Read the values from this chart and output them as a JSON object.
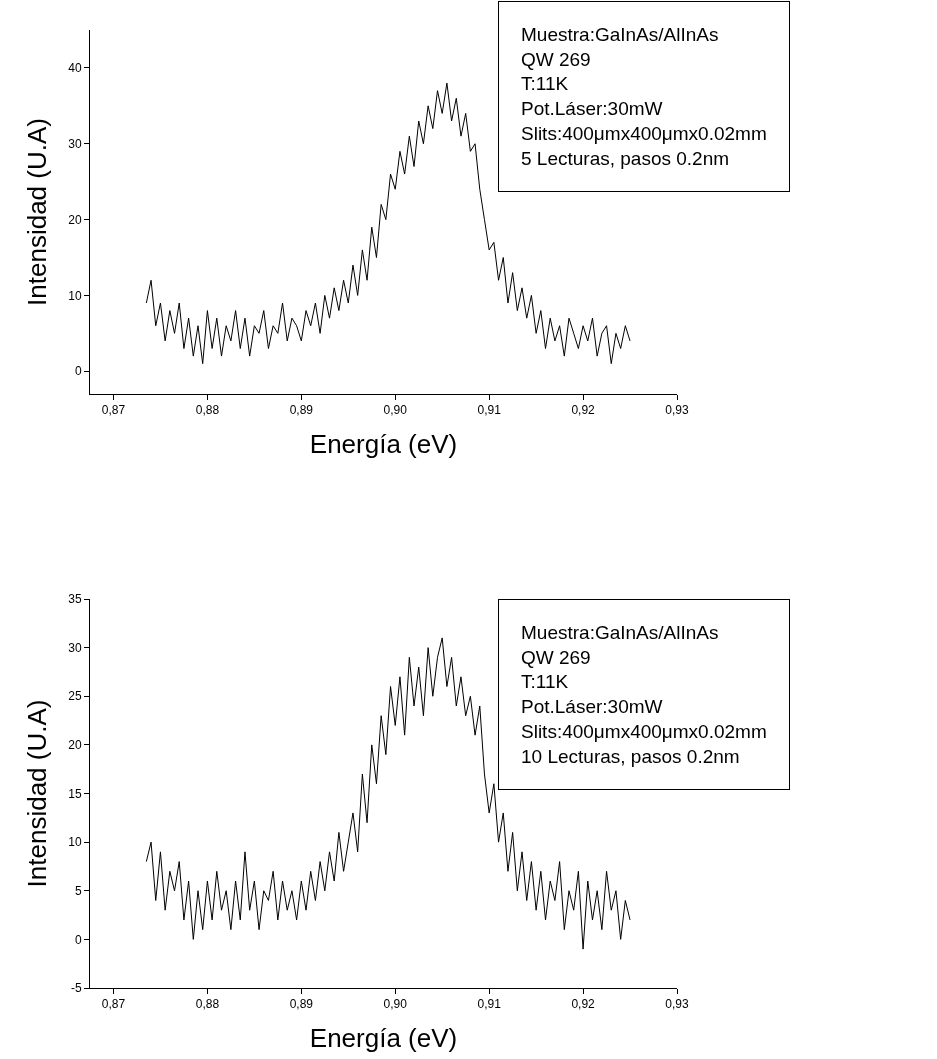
{
  "chart_data": [
    {
      "type": "line",
      "xlabel": "Energía (eV)",
      "ylabel": "Intensidad (U.A)",
      "annotations": [
        "Muestra:GaInAs/AlInAs\nQW 269\nT:11K\nPot.Láser:30mW\nSlits:400μmx400μmx0.02mm\n5 Lecturas, pasos 0.2nm"
      ],
      "x": [
        0.8735,
        0.874,
        0.8745,
        0.875,
        0.8755,
        0.876,
        0.8765,
        0.877,
        0.8775,
        0.878,
        0.8785,
        0.879,
        0.8795,
        0.88,
        0.8805,
        0.881,
        0.8815,
        0.882,
        0.8825,
        0.883,
        0.8835,
        0.884,
        0.8845,
        0.885,
        0.8855,
        0.886,
        0.8865,
        0.887,
        0.8875,
        0.888,
        0.8885,
        0.889,
        0.8895,
        0.89,
        0.8905,
        0.891,
        0.8915,
        0.892,
        0.8925,
        0.893,
        0.8935,
        0.894,
        0.8945,
        0.895,
        0.8955,
        0.896,
        0.8965,
        0.897,
        0.8975,
        0.898,
        0.8985,
        0.899,
        0.8995,
        0.9,
        0.9005,
        0.901,
        0.9015,
        0.902,
        0.9025,
        0.903,
        0.9035,
        0.904,
        0.9045,
        0.905,
        0.9055,
        0.906,
        0.9065,
        0.907,
        0.9075,
        0.908,
        0.9085,
        0.909,
        0.9095,
        0.91,
        0.9105,
        0.911,
        0.9115,
        0.912,
        0.9125,
        0.913,
        0.9135,
        0.914,
        0.9145,
        0.915,
        0.9155,
        0.916,
        0.9165,
        0.917,
        0.9175,
        0.918,
        0.9185,
        0.919,
        0.9195,
        0.92,
        0.9205,
        0.921,
        0.9215,
        0.922,
        0.9225,
        0.923,
        0.9235,
        0.924,
        0.9245,
        0.925
      ],
      "series": [
        {
          "color": "#000000",
          "values": [
            9,
            12,
            6,
            9,
            4,
            8,
            5,
            9,
            3,
            7,
            2,
            6,
            1,
            8,
            3,
            7,
            2,
            6,
            4,
            8,
            3,
            7,
            2,
            6,
            5,
            8,
            3,
            6,
            5,
            9,
            4,
            7,
            6,
            4,
            8,
            6,
            9,
            5,
            10,
            7,
            11,
            8,
            12,
            9,
            14,
            10,
            16,
            12,
            19,
            15,
            22,
            20,
            26,
            24,
            29,
            26,
            31,
            27,
            33,
            30,
            35,
            32,
            37,
            34,
            38,
            33,
            36,
            31,
            34,
            29,
            30,
            24,
            20,
            16,
            17,
            12,
            15,
            9,
            13,
            8,
            11,
            7,
            10,
            5,
            8,
            3,
            7,
            4,
            6,
            2,
            7,
            5,
            3,
            6,
            4,
            7,
            2,
            5,
            6,
            1,
            5,
            3,
            6,
            4
          ]
        }
      ],
      "xlim": [
        0.8675,
        0.93
      ],
      "ylim": [
        -3,
        45
      ],
      "xticks": [
        {
          "value": 0.87,
          "label": "0,87"
        },
        {
          "value": 0.88,
          "label": "0,88"
        },
        {
          "value": 0.89,
          "label": "0,89"
        },
        {
          "value": 0.9,
          "label": "0,90"
        },
        {
          "value": 0.91,
          "label": "0,91"
        },
        {
          "value": 0.92,
          "label": "0,92"
        },
        {
          "value": 0.93,
          "label": "0,93"
        }
      ],
      "yticks": [
        0,
        10,
        20,
        30,
        40
      ],
      "grid": false,
      "marker": "none",
      "line_style": "solid"
    },
    {
      "type": "line",
      "xlabel": "Energía (eV)",
      "ylabel": "Intensidad (U.A)",
      "annotations": [
        "Muestra:GaInAs/AlInAs\nQW 269\nT:11K\nPot.Láser:30mW\nSlits:400μmx400μmx0.02mm\n10 Lecturas, pasos 0.2nm"
      ],
      "x": [
        0.8735,
        0.874,
        0.8745,
        0.875,
        0.8755,
        0.876,
        0.8765,
        0.877,
        0.8775,
        0.878,
        0.8785,
        0.879,
        0.8795,
        0.88,
        0.8805,
        0.881,
        0.8815,
        0.882,
        0.8825,
        0.883,
        0.8835,
        0.884,
        0.8845,
        0.885,
        0.8855,
        0.886,
        0.8865,
        0.887,
        0.8875,
        0.888,
        0.8885,
        0.889,
        0.8895,
        0.89,
        0.8905,
        0.891,
        0.8915,
        0.892,
        0.8925,
        0.893,
        0.8935,
        0.894,
        0.8945,
        0.895,
        0.8955,
        0.896,
        0.8965,
        0.897,
        0.8975,
        0.898,
        0.8985,
        0.899,
        0.8995,
        0.9,
        0.9005,
        0.901,
        0.9015,
        0.902,
        0.9025,
        0.903,
        0.9035,
        0.904,
        0.9045,
        0.905,
        0.9055,
        0.906,
        0.9065,
        0.907,
        0.9075,
        0.908,
        0.9085,
        0.909,
        0.9095,
        0.91,
        0.9105,
        0.911,
        0.9115,
        0.912,
        0.9125,
        0.913,
        0.9135,
        0.914,
        0.9145,
        0.915,
        0.9155,
        0.916,
        0.9165,
        0.917,
        0.9175,
        0.918,
        0.9185,
        0.919,
        0.9195,
        0.92,
        0.9205,
        0.921,
        0.9215,
        0.922,
        0.9225,
        0.923,
        0.9235,
        0.924,
        0.9245,
        0.925
      ],
      "series": [
        {
          "color": "#000000",
          "values": [
            8,
            10,
            4,
            9,
            3,
            7,
            5,
            8,
            2,
            6,
            0,
            5,
            1,
            6,
            2,
            7,
            3,
            5,
            1,
            6,
            2,
            9,
            3,
            6,
            1,
            5,
            4,
            7,
            2,
            6,
            3,
            5,
            2,
            6,
            3,
            7,
            4,
            8,
            5,
            9,
            6,
            11,
            7,
            10,
            13,
            9,
            17,
            12,
            20,
            16,
            23,
            19,
            26,
            22,
            27,
            21,
            29,
            24,
            28,
            23,
            30,
            25,
            29,
            31,
            26,
            29,
            24,
            27,
            23,
            25,
            21,
            24,
            17,
            13,
            16,
            10,
            13,
            7,
            11,
            5,
            9,
            4,
            8,
            3,
            7,
            2,
            6,
            4,
            8,
            1,
            5,
            3,
            7,
            -1,
            6,
            2,
            5,
            1,
            7,
            3,
            5,
            0,
            4,
            2
          ]
        }
      ],
      "xlim": [
        0.8675,
        0.93
      ],
      "ylim": [
        -5,
        35
      ],
      "xticks": [
        {
          "value": 0.87,
          "label": "0,87"
        },
        {
          "value": 0.88,
          "label": "0,88"
        },
        {
          "value": 0.89,
          "label": "0,89"
        },
        {
          "value": 0.9,
          "label": "0,90"
        },
        {
          "value": 0.91,
          "label": "0,91"
        },
        {
          "value": 0.92,
          "label": "0,92"
        },
        {
          "value": 0.93,
          "label": "0,93"
        }
      ],
      "yticks": [
        -5,
        0,
        5,
        10,
        15,
        20,
        25,
        30,
        35
      ],
      "grid": false,
      "marker": "none",
      "line_style": "solid"
    }
  ]
}
